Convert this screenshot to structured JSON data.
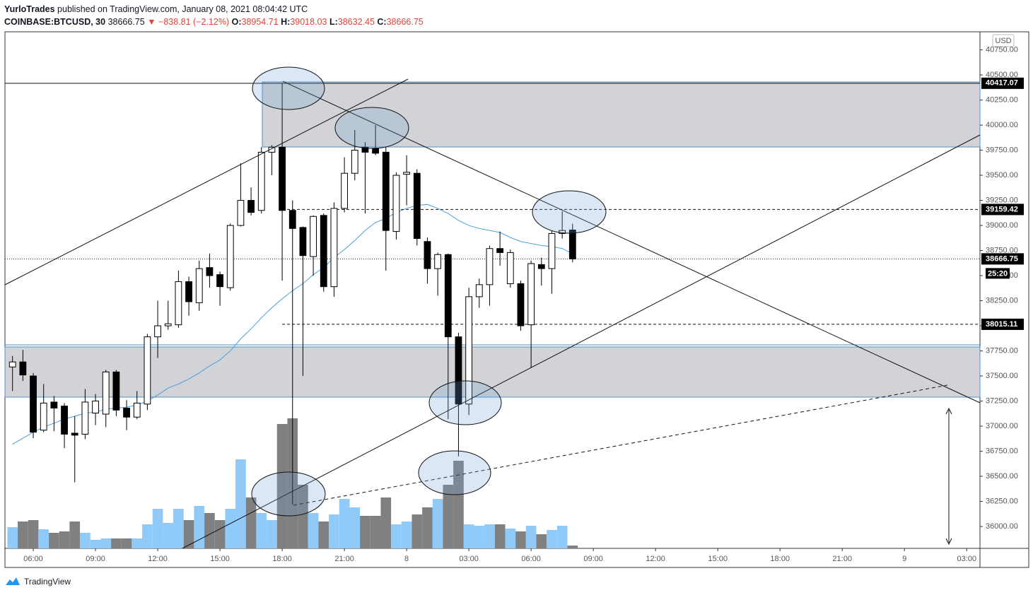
{
  "header": {
    "author": "YurloTrades",
    "published": "published on TradingView.com, January 08, 2021 08:04:42 UTC",
    "symbol": "COINBASE:BTCUSD, 30",
    "arrow": "▼",
    "change": "−838.81 (−2.12%)",
    "o_label": "O:",
    "h_label": "H:",
    "l_label": "L:",
    "c_label": "C:"
  },
  "chart_data": {
    "type": "candlestick",
    "currency": "USD",
    "x": [
      0,
      1,
      2,
      3,
      4,
      5,
      6,
      7,
      8,
      9,
      10,
      11,
      12,
      13,
      14,
      15,
      16,
      17,
      18,
      19,
      20,
      21,
      22,
      23,
      24,
      25,
      26,
      27,
      28,
      29,
      30,
      31,
      32,
      33,
      34,
      35,
      36,
      37,
      38,
      39,
      40,
      41,
      42,
      43,
      44,
      45,
      46,
      47,
      48,
      49,
      50,
      51,
      52,
      53,
      54
    ],
    "open": [
      37590,
      37640,
      37500,
      36960,
      37240,
      37200,
      36930,
      36920,
      37130,
      37120,
      37540,
      37180,
      37090,
      37220,
      37890,
      38000,
      38010,
      38440,
      38230,
      38580,
      38510,
      38380,
      39000,
      39250,
      39150,
      39730,
      39780,
      39150,
      38980,
      38690,
      39100,
      38390,
      39170,
      39520,
      39780,
      39770,
      39730,
      38940,
      39510,
      39520,
      38840,
      38570,
      38710,
      37890,
      37220,
      38290,
      38410,
      38770,
      38420,
      38420,
      38010,
      38610,
      38570,
      38920,
      38954.71
    ],
    "high": [
      37700,
      37760,
      37530,
      37420,
      37300,
      37230,
      37100,
      37370,
      37320,
      37560,
      37560,
      37260,
      37350,
      37920,
      38250,
      38250,
      38550,
      38490,
      38650,
      38720,
      38540,
      39020,
      39620,
      39380,
      39780,
      39800,
      40417.07,
      39250,
      38990,
      39100,
      39120,
      39230,
      39680,
      39950,
      39830,
      40000,
      39780,
      39530,
      39700,
      39560,
      38880,
      38730,
      38720,
      37930,
      38380,
      38470,
      38800,
      38940,
      38760,
      38450,
      38650,
      38680,
      38950,
      39140,
      39018.03
    ],
    "low": [
      37350,
      37450,
      36880,
      36940,
      36950,
      36780,
      36440,
      36870,
      37010,
      36990,
      37100,
      36960,
      37070,
      37160,
      37680,
      37960,
      37980,
      38100,
      38150,
      38380,
      38200,
      38350,
      38990,
      39100,
      39120,
      39500,
      38450,
      36220,
      37500,
      38500,
      38340,
      38290,
      39130,
      39450,
      39120,
      39700,
      38550,
      38860,
      39200,
      38800,
      38420,
      38300,
      37070,
      36700,
      37110,
      38180,
      38200,
      38600,
      38380,
      37950,
      37580,
      38400,
      38320,
      38870,
      38632.45
    ],
    "close": [
      37640,
      37510,
      36940,
      37230,
      37180,
      36920,
      36910,
      37240,
      37250,
      37540,
      37160,
      37090,
      37230,
      37890,
      38000,
      38020,
      38440,
      38240,
      38570,
      38500,
      38390,
      39000,
      39250,
      39130,
      39730,
      39780,
      39150,
      38970,
      38700,
      39090,
      38390,
      39170,
      39520,
      39750,
      39730,
      39720,
      38950,
      39500,
      39530,
      38870,
      38570,
      38710,
      37890,
      37220,
      38290,
      38410,
      38770,
      38730,
      38730,
      38000,
      38620,
      38570,
      38920,
      38950,
      38666.75
    ],
    "volume": [
      30,
      38,
      40,
      27,
      22,
      24,
      38,
      22,
      12,
      14,
      14,
      14,
      14,
      34,
      56,
      36,
      56,
      40,
      60,
      50,
      40,
      56,
      126,
      72,
      50,
      40,
      176,
      184,
      90,
      50,
      38,
      48,
      70,
      58,
      46,
      46,
      72,
      34,
      38,
      48,
      58,
      70,
      90,
      124,
      34,
      32,
      34,
      34,
      28,
      24,
      32,
      20,
      26,
      32,
      4
    ],
    "ma": [
      36820,
      36880,
      36940,
      36990,
      37030,
      37070,
      37100,
      37130,
      37140,
      37170,
      37180,
      37190,
      37210,
      37250,
      37310,
      37380,
      37420,
      37470,
      37530,
      37600,
      37660,
      37750,
      37870,
      37970,
      38080,
      38180,
      38270,
      38350,
      38420,
      38510,
      38580,
      38680,
      38760,
      38850,
      38950,
      39030,
      39070,
      39130,
      39170,
      39200,
      39210,
      39170,
      39120,
      39050,
      39000,
      38970,
      38950,
      38930,
      38880,
      38840,
      38820,
      38800,
      38790,
      38770,
      38720
    ],
    "up_color": "#ffffff",
    "down_color": "#000000",
    "vol_up_color": "#90caf9",
    "vol_down_color": "#808080",
    "ma_color": "#4a9fd8",
    "xlim": [
      -0.73,
      93.28
    ],
    "ylim": [
      35782,
      40930
    ],
    "xticks": [
      {
        "value": 2,
        "label": "06:00"
      },
      {
        "value": 8,
        "label": "09:00"
      },
      {
        "value": 14,
        "label": "12:00"
      },
      {
        "value": 20,
        "label": "15:00"
      },
      {
        "value": 26,
        "label": "18:00"
      },
      {
        "value": 32,
        "label": "21:00"
      },
      {
        "value": 38,
        "label": "8"
      },
      {
        "value": 44,
        "label": "03:00"
      },
      {
        "value": 50,
        "label": "06:00"
      },
      {
        "value": 56,
        "label": "09:00"
      },
      {
        "value": 62,
        "label": "12:00"
      },
      {
        "value": 68,
        "label": "15:00"
      },
      {
        "value": 74,
        "label": "18:00"
      },
      {
        "value": 80,
        "label": "21:00"
      },
      {
        "value": 86,
        "label": "9"
      },
      {
        "value": 92,
        "label": "03:00"
      }
    ],
    "yticks": [
      {
        "value": 40750,
        "label": "40750.00"
      },
      {
        "value": 40500,
        "label": "40500.00"
      },
      {
        "value": 40250,
        "label": "40250.00"
      },
      {
        "value": 40000,
        "label": "40000.00"
      },
      {
        "value": 39750,
        "label": "39750.00"
      },
      {
        "value": 39500,
        "label": "39500.00"
      },
      {
        "value": 39250,
        "label": "39250.00"
      },
      {
        "value": 39000,
        "label": "39000.00"
      },
      {
        "value": 38750,
        "label": "38750.00"
      },
      {
        "value": 38500,
        "label": "38500.00"
      },
      {
        "value": 38250,
        "label": "38250.00"
      },
      {
        "value": 38000,
        "label": "38000.00"
      },
      {
        "value": 37750,
        "label": "37750.00"
      },
      {
        "value": 37500,
        "label": "37500.00"
      },
      {
        "value": 37250,
        "label": "37250.00"
      },
      {
        "value": 37000,
        "label": "37000.00"
      },
      {
        "value": 36750,
        "label": "36750.00"
      },
      {
        "value": 36500,
        "label": "36500.00"
      },
      {
        "value": 36250,
        "label": "36250.00"
      },
      {
        "value": 36000,
        "label": "36000.00"
      }
    ],
    "levels": [
      {
        "value": 40417.07,
        "style": "solid"
      },
      {
        "value": 39159.42,
        "style": "dashed"
      },
      {
        "value": 38015.11,
        "style": "dashed"
      }
    ],
    "countdown": "25:20",
    "brand": "TradingView"
  }
}
